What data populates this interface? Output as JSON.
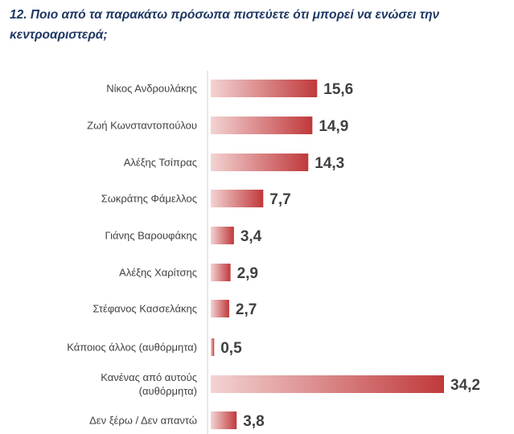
{
  "title": "12. Ποιο από τα παρακάτω πρόσωπα πιστεύετε ότι μπορεί να ενώσει την κεντροαριστερά;",
  "chart_data": {
    "type": "bar",
    "orientation": "horizontal",
    "title": "12. Ποιο από τα παρακάτω πρόσωπα πιστεύετε ότι μπορεί να ενώσει την κεντροαριστερά;",
    "categories": [
      [
        "Νίκος Ανδρουλάκης"
      ],
      [
        "Ζωή Κωνσταντοπούλου"
      ],
      [
        "Αλέξης Τσίπρας"
      ],
      [
        "Σωκράτης Φάμελλος"
      ],
      [
        "Γιάνης Βαρουφάκης"
      ],
      [
        "Αλέξης Χαρίτσης"
      ],
      [
        "Στέφανος Κασσελάκης"
      ],
      [
        "Κάποιος άλλος (αυθόρμητα)"
      ],
      [
        "Κανένας από αυτούς",
        "(αυθόρμητα)"
      ],
      [
        "Δεν ξέρω / Δεν απαντώ"
      ]
    ],
    "values": [
      15.6,
      14.9,
      14.3,
      7.7,
      3.4,
      2.9,
      2.7,
      0.5,
      34.2,
      3.8
    ],
    "value_labels": [
      "15,6",
      "14,9",
      "14,3",
      "7,7",
      "3,4",
      "2,9",
      "2,7",
      "0,5",
      "34,2",
      "3,8"
    ],
    "xlim": [
      0,
      34.2
    ],
    "grid": false,
    "bar_color_light": "#f3d3d3",
    "bar_color_dark": "#c0393b"
  }
}
